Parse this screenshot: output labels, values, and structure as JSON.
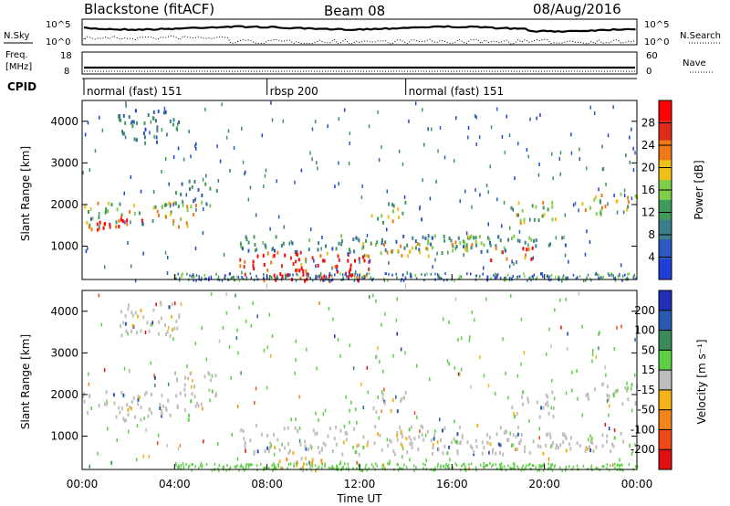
{
  "header": {
    "station": "Blackstone (fitACF)",
    "beam": "Beam 08",
    "date": "08/Aug/2016"
  },
  "panel_labels": {
    "nsky": "N.Sky",
    "nsearch": "N.Search",
    "freq": "Freq.",
    "freq_unit": "[MHz]",
    "nave": "Nave",
    "cpid": "CPID",
    "nsky_ticks": [
      "10^5",
      "10^0"
    ],
    "nsearch_ticks": [
      "10^5",
      "10^0"
    ],
    "freq_ticks": [
      "18",
      "8"
    ],
    "nave_ticks": [
      "60",
      "0"
    ]
  },
  "cpid_segments": [
    {
      "label": "normal (fast) 151",
      "start_h": 0
    },
    {
      "label": "rbsp 200",
      "start_h": 8
    },
    {
      "label": "normal (fast) 151",
      "start_h": 14
    }
  ],
  "colors": {
    "power": [
      "#1f3fd8",
      "#2b58c2",
      "#3b7d8a",
      "#3f9a5a",
      "#7fce4b",
      "#f0c01a",
      "#f07a18",
      "#e02a1a",
      "#ff0000"
    ],
    "velocity": [
      "#1f2fb8",
      "#2a5ab0",
      "#3a8a5a",
      "#5ccf45",
      "#bdbdbd",
      "#f7b21a",
      "#f2841b",
      "#ee4a18",
      "#e01010"
    ],
    "grey": "#c0bfb9"
  },
  "chart_data": [
    {
      "type": "heatmap",
      "title": "Power",
      "ylabel": "Slant Range [km]",
      "ylim": [
        200,
        4500
      ],
      "yticks": [
        "1000",
        "2000",
        "3000",
        "4000"
      ],
      "xlim": [
        0,
        24
      ],
      "colorbar": {
        "label": "Power [dB]",
        "ticks": [
          "4",
          "8",
          "12",
          "16",
          "20",
          "24",
          "28"
        ],
        "range": [
          0,
          32
        ]
      },
      "regions": [
        {
          "t0": 0.0,
          "t1": 5.2,
          "r0": 1500,
          "r1": 2100,
          "level": 0.55
        },
        {
          "t0": 0.0,
          "t1": 3.0,
          "r0": 1400,
          "r1": 1700,
          "level": 0.9
        },
        {
          "t0": 1.5,
          "t1": 4.2,
          "r0": 3500,
          "r1": 4300,
          "level": 0.25
        },
        {
          "t0": 4.0,
          "t1": 5.8,
          "r0": 2000,
          "r1": 2600,
          "level": 0.3
        },
        {
          "t0": 6.8,
          "t1": 19.0,
          "r0": 900,
          "r1": 1300,
          "level": 0.35
        },
        {
          "t0": 6.8,
          "t1": 12.5,
          "r0": 200,
          "r1": 900,
          "level": 0.85
        },
        {
          "t0": 8.0,
          "t1": 12.0,
          "r0": 200,
          "r1": 400,
          "level": 1.0
        },
        {
          "t0": 12.0,
          "t1": 17.0,
          "r0": 800,
          "r1": 1150,
          "level": 0.6
        },
        {
          "t0": 12.5,
          "t1": 14.0,
          "r0": 1600,
          "r1": 2100,
          "level": 0.5
        },
        {
          "t0": 17.5,
          "t1": 19.5,
          "r0": 700,
          "r1": 1000,
          "level": 0.8
        },
        {
          "t0": 16.0,
          "t1": 21.0,
          "r0": 1000,
          "r1": 1300,
          "level": 0.4
        },
        {
          "t0": 18.5,
          "t1": 20.5,
          "r0": 1500,
          "r1": 2100,
          "level": 0.55
        },
        {
          "t0": 21.5,
          "t1": 24.0,
          "r0": 1800,
          "r1": 2300,
          "level": 0.55
        }
      ]
    },
    {
      "type": "heatmap",
      "title": "Velocity",
      "ylabel": "Slant Range [km]",
      "ylim": [
        200,
        4500
      ],
      "yticks": [
        "1000",
        "2000",
        "3000",
        "4000"
      ],
      "xlim": [
        0,
        24
      ],
      "xlabel": "Time UT",
      "xticks": [
        "00:00",
        "04:00",
        "08:00",
        "12:00",
        "16:00",
        "20:00",
        "00:00"
      ],
      "colorbar": {
        "label": "Velocity [m s⁻¹]",
        "ticks": [
          "200",
          "100",
          "50",
          "15",
          "-15",
          "-50",
          "-100",
          "-200"
        ]
      },
      "regions": [
        {
          "t0": 0.0,
          "t1": 5.2,
          "r0": 1400,
          "r1": 2100,
          "level": "grey"
        },
        {
          "t0": 1.5,
          "t1": 4.2,
          "r0": 3400,
          "r1": 4300,
          "level": "grey"
        },
        {
          "t0": 4.0,
          "t1": 5.8,
          "r0": 2000,
          "r1": 2600,
          "level": "grey"
        },
        {
          "t0": 6.8,
          "t1": 19.0,
          "r0": 600,
          "r1": 1300,
          "level": "grey"
        },
        {
          "t0": 7.5,
          "t1": 10.5,
          "r0": 200,
          "r1": 550,
          "level": "orange"
        },
        {
          "t0": 12.5,
          "t1": 14.0,
          "r0": 1600,
          "r1": 2100,
          "level": "grey"
        },
        {
          "t0": 16.0,
          "t1": 24.0,
          "r0": 600,
          "r1": 1100,
          "level": "grey"
        },
        {
          "t0": 18.5,
          "t1": 20.5,
          "r0": 1500,
          "r1": 2100,
          "level": "grey"
        },
        {
          "t0": 21.5,
          "t1": 24.0,
          "r0": 1800,
          "r1": 2300,
          "level": "grey"
        }
      ]
    }
  ]
}
